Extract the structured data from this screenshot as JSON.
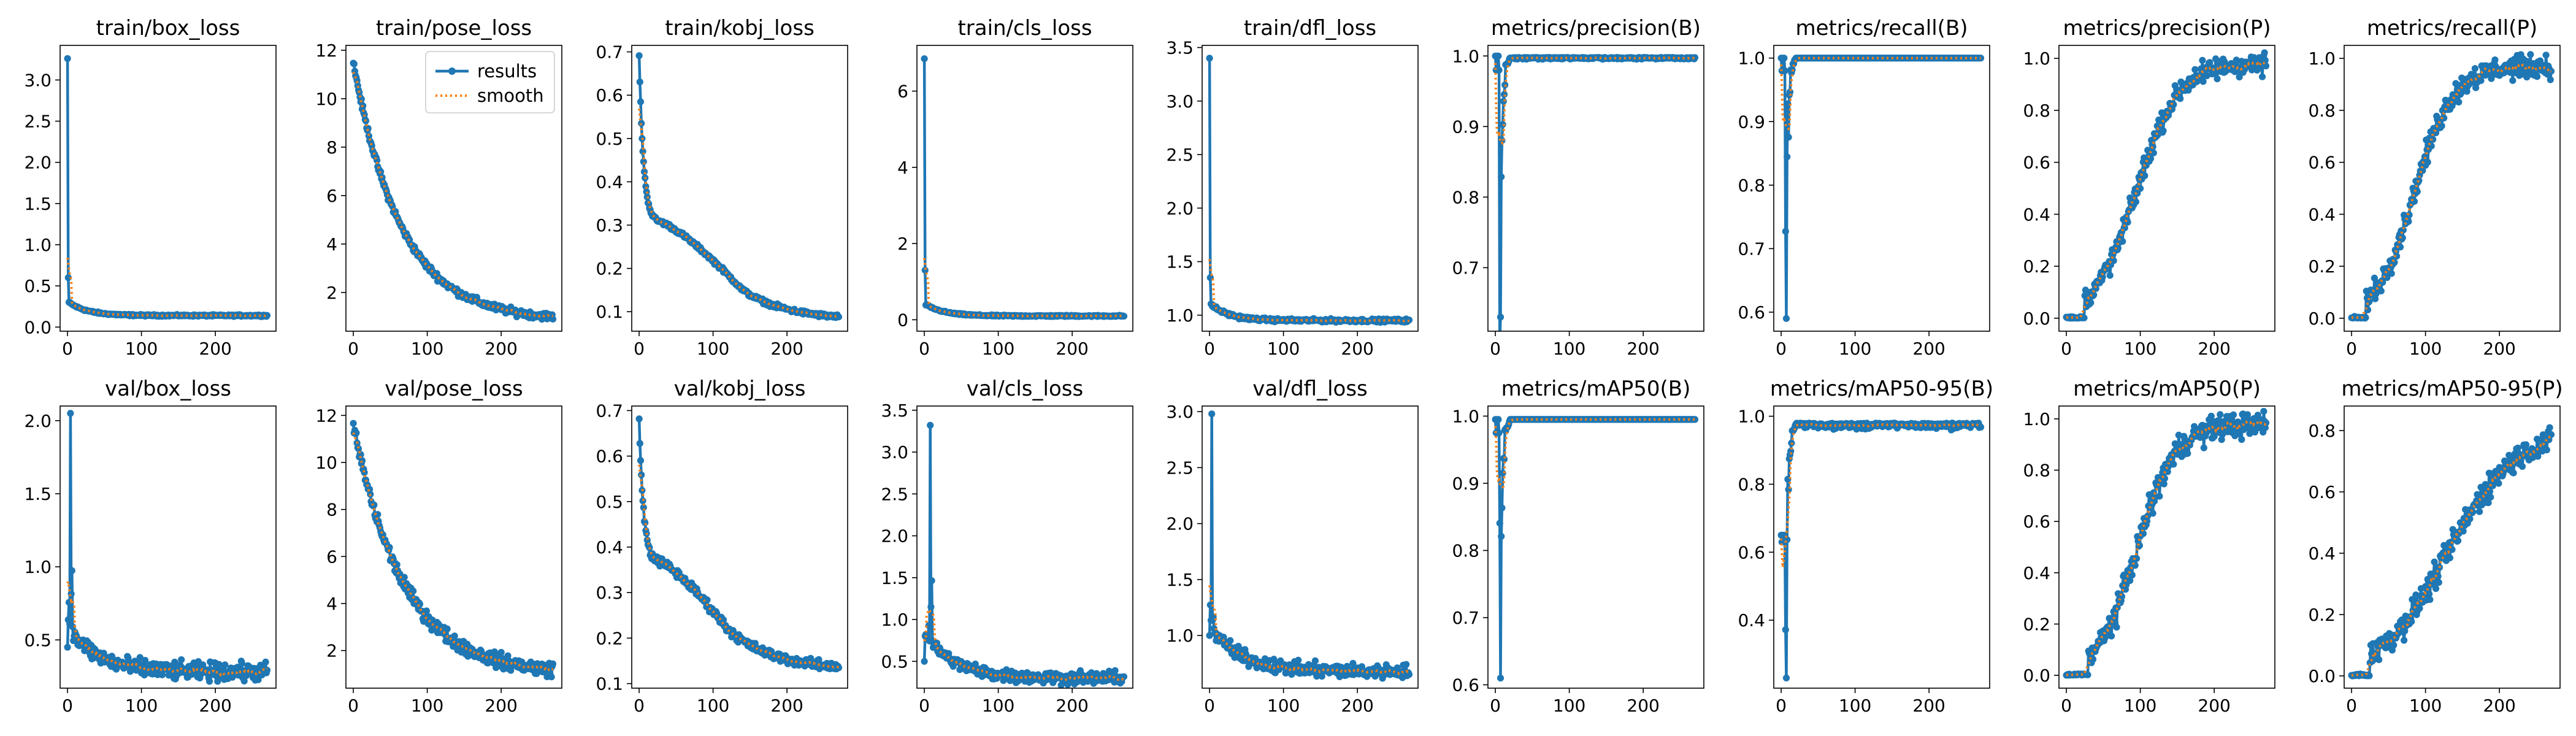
{
  "chart_data": {
    "type": "line",
    "layout": "2x9 grid of line plots",
    "legend": {
      "entries": [
        "results",
        "smooth"
      ],
      "placement": "top-right of train/pose_loss"
    },
    "colors": {
      "results": "#1f77b4",
      "smooth": "#ff7f0e"
    },
    "x_ticks": [
      "0",
      "100",
      "200"
    ],
    "panels": [
      {
        "title": "train/box_loss",
        "y_ticks": [
          "0.0",
          "0.5",
          "1.0",
          "1.5",
          "2.0",
          "2.5",
          "3.0"
        ],
        "ylim": [
          -0.05,
          3.42
        ],
        "curve": {
          "kind": "spike_decay",
          "start": 3.26,
          "second": 0.6,
          "drop_end": 0.3,
          "end": 0.14,
          "noise": 0.008
        }
      },
      {
        "title": "train/pose_loss",
        "y_ticks": [
          "2",
          "4",
          "6",
          "8",
          "10",
          "12"
        ],
        "ylim": [
          0.4,
          12.2
        ],
        "curve": {
          "kind": "exp_decay",
          "start": 11.5,
          "end": 1.0,
          "shape": "exp",
          "k": 4.2,
          "noise": 0.12
        }
      },
      {
        "title": "train/kobj_loss",
        "y_ticks": [
          "0.1",
          "0.2",
          "0.3",
          "0.4",
          "0.5",
          "0.6",
          "0.7"
        ],
        "ylim": [
          0.055,
          0.715
        ],
        "curve": {
          "kind": "two_phase",
          "start": 0.69,
          "mid_x": 25,
          "mid_y": 0.31,
          "knee_x": 140,
          "knee_y": 0.15,
          "end": 0.08,
          "noise": 0.004
        }
      },
      {
        "title": "train/cls_loss",
        "y_ticks": [
          "0",
          "2",
          "4",
          "6"
        ],
        "ylim": [
          -0.3,
          7.2
        ],
        "curve": {
          "kind": "spike_decay",
          "start": 6.85,
          "second": 1.3,
          "drop_end": 0.4,
          "end": 0.1,
          "noise": 0.015
        }
      },
      {
        "title": "train/dfl_loss",
        "y_ticks": [
          "1.0",
          "1.5",
          "2.0",
          "2.5",
          "3.0",
          "3.5"
        ],
        "ylim": [
          0.85,
          3.52
        ],
        "curve": {
          "kind": "spike_decay",
          "start": 3.4,
          "second": 1.35,
          "drop_end": 1.1,
          "end": 0.95,
          "noise": 0.012
        }
      },
      {
        "title": "metrics/precision(B)",
        "y_ticks": [
          "0.7",
          "0.8",
          "0.9",
          "1.0"
        ],
        "ylim": [
          0.61,
          1.015
        ],
        "curve": {
          "kind": "rise_early",
          "start": 1.0,
          "low": 0.63,
          "end": 0.998,
          "noise": 0.002
        }
      },
      {
        "title": "metrics/recall(B)",
        "y_ticks": [
          "0.6",
          "0.7",
          "0.8",
          "0.9",
          "1.0"
        ],
        "ylim": [
          0.57,
          1.02
        ],
        "curve": {
          "kind": "rise_early",
          "start": 1.0,
          "low": 0.59,
          "end": 1.0,
          "noise": 0.0
        }
      },
      {
        "title": "metrics/precision(P)",
        "y_ticks": [
          "0.0",
          "0.2",
          "0.4",
          "0.6",
          "0.8",
          "1.0"
        ],
        "ylim": [
          -0.05,
          1.05
        ],
        "curve": {
          "kind": "sigmoid",
          "start": 0.0,
          "end": 0.98,
          "center": 95,
          "width": 28,
          "delay": 25,
          "noise": 0.035
        }
      },
      {
        "title": "metrics/recall(P)",
        "y_ticks": [
          "0.0",
          "0.2",
          "0.4",
          "0.6",
          "0.8",
          "1.0"
        ],
        "ylim": [
          -0.05,
          1.05
        ],
        "curve": {
          "kind": "sigmoid",
          "start": 0.0,
          "end": 0.97,
          "center": 85,
          "width": 26,
          "delay": 20,
          "noise": 0.035
        }
      },
      {
        "title": "val/box_loss",
        "y_ticks": [
          "0.5",
          "1.0",
          "1.5",
          "2.0"
        ],
        "ylim": [
          0.17,
          2.1
        ],
        "curve": {
          "kind": "noisy_decay",
          "start": 0.45,
          "peak": 2.05,
          "peak_x": 4,
          "end": 0.28,
          "noise": 0.05
        }
      },
      {
        "title": "val/pose_loss",
        "y_ticks": [
          "2",
          "4",
          "6",
          "8",
          "10",
          "12"
        ],
        "ylim": [
          0.4,
          12.4
        ],
        "curve": {
          "kind": "exp_decay",
          "start": 11.6,
          "end": 1.2,
          "shape": "exp",
          "k": 4.0,
          "noise": 0.25
        }
      },
      {
        "title": "val/kobj_loss",
        "y_ticks": [
          "0.1",
          "0.2",
          "0.3",
          "0.4",
          "0.5",
          "0.6",
          "0.7"
        ],
        "ylim": [
          0.09,
          0.71
        ],
        "curve": {
          "kind": "two_phase",
          "start": 0.68,
          "mid_x": 25,
          "mid_y": 0.37,
          "knee_x": 120,
          "knee_y": 0.22,
          "end": 0.13,
          "noise": 0.008
        }
      },
      {
        "title": "val/cls_loss",
        "y_ticks": [
          "0.5",
          "1.0",
          "1.5",
          "2.0",
          "2.5",
          "3.0",
          "3.5"
        ],
        "ylim": [
          0.18,
          3.55
        ],
        "curve": {
          "kind": "noisy_decay",
          "start": 0.5,
          "peak": 3.32,
          "peak_x": 8,
          "end": 0.3,
          "noise": 0.06
        }
      },
      {
        "title": "val/dfl_loss",
        "y_ticks": [
          "1.0",
          "1.5",
          "2.0",
          "2.5",
          "3.0"
        ],
        "ylim": [
          0.53,
          3.05
        ],
        "curve": {
          "kind": "noisy_decay",
          "start": 1.0,
          "peak": 2.98,
          "peak_x": 3,
          "end": 0.68,
          "noise": 0.05
        }
      },
      {
        "title": "metrics/mAP50(B)",
        "y_ticks": [
          "0.6",
          "0.7",
          "0.8",
          "0.9",
          "1.0"
        ],
        "ylim": [
          0.595,
          1.015
        ],
        "curve": {
          "kind": "rise_early",
          "start": 0.995,
          "low": 0.61,
          "end": 0.995,
          "noise": 0.0
        }
      },
      {
        "title": "metrics/mAP50-95(B)",
        "y_ticks": [
          "0.4",
          "0.6",
          "0.8",
          "1.0"
        ],
        "ylim": [
          0.2,
          1.03
        ],
        "curve": {
          "kind": "rise_early",
          "start": 0.65,
          "low": 0.23,
          "end": 0.98,
          "noise": 0.012
        }
      },
      {
        "title": "metrics/mAP50(P)",
        "y_ticks": [
          "0.0",
          "0.2",
          "0.4",
          "0.6",
          "0.8",
          "1.0"
        ],
        "ylim": [
          -0.05,
          1.05
        ],
        "curve": {
          "kind": "sigmoid",
          "start": 0.0,
          "end": 0.98,
          "center": 95,
          "width": 26,
          "delay": 30,
          "noise": 0.04
        }
      },
      {
        "title": "metrics/mAP50-95(P)",
        "y_ticks": [
          "0.0",
          "0.2",
          "0.4",
          "0.6",
          "0.8"
        ],
        "ylim": [
          -0.04,
          0.88
        ],
        "curve": {
          "kind": "sigmoid",
          "start": 0.0,
          "end": 0.8,
          "center": 130,
          "width": 45,
          "delay": 25,
          "noise": 0.035
        }
      }
    ]
  }
}
